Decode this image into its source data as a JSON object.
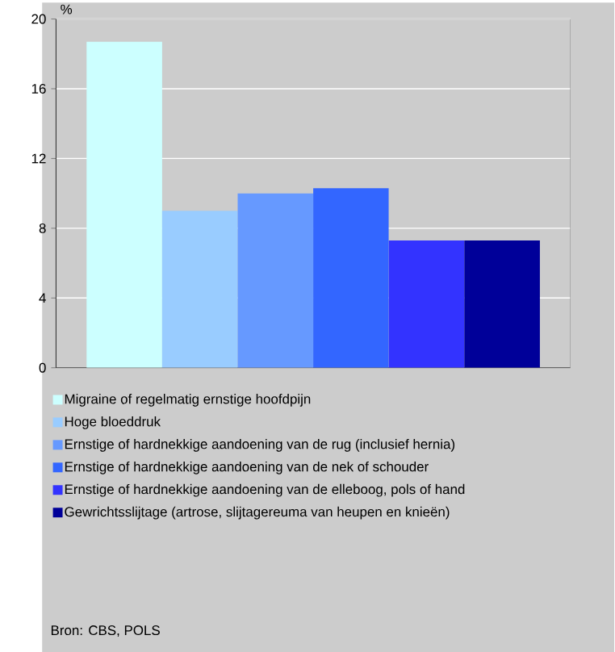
{
  "chart_data": {
    "type": "bar",
    "ylabel": "%",
    "categories": [
      null
    ],
    "series": [
      {
        "name": "Migraine of regelmatig ernstige hoofdpijn",
        "color": "#ccffff",
        "values": [
          18.7
        ]
      },
      {
        "name": "Hoge bloeddruk",
        "color": "#99ccff",
        "values": [
          9.0
        ]
      },
      {
        "name": "Ernstige of hardnekkige aandoening van de rug (inclusief hernia)",
        "color": "#6699ff",
        "values": [
          10.0
        ]
      },
      {
        "name": "Ernstige of hardnekkige aandoening van de nek of schouder",
        "color": "#3366ff",
        "values": [
          10.3
        ]
      },
      {
        "name": "Ernstige of hardnekkige aandoening van de elleboog, pols of hand",
        "color": "#3333ff",
        "values": [
          7.3
        ]
      },
      {
        "name": "Gewrichtsslijtage (artrose, slijtagereuma van heupen en knieën)",
        "color": "#000099",
        "values": [
          7.3
        ]
      }
    ],
    "ylim": [
      0,
      20
    ],
    "yticks": [
      0,
      4,
      8,
      12,
      16,
      20
    ],
    "grid": "y",
    "legend": "bottom",
    "annotations": [
      "Bron: CBS, POLS"
    ]
  }
}
